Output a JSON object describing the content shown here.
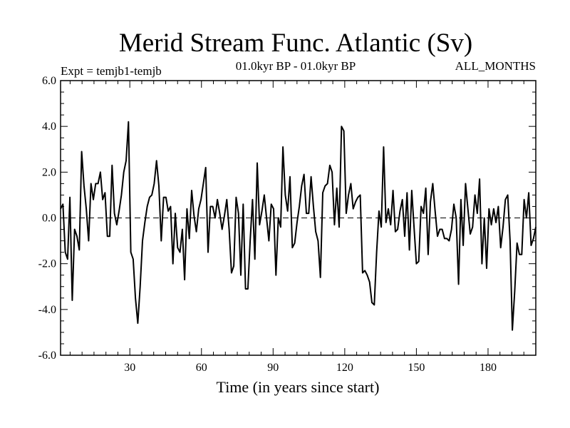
{
  "chart_data": {
    "type": "line",
    "title": "Merid Stream Func. Atlantic (Sv)",
    "subtitle_left": "Expt = temjb1-temjb",
    "subtitle_center": "01.0kyr BP - 01.0kyr BP",
    "subtitle_right": "ALL_MONTHS",
    "xlabel": "Time (in years since start)",
    "ylabel": "",
    "xlim": [
      1,
      200
    ],
    "ylim": [
      -6,
      6
    ],
    "xticks": [
      30,
      60,
      90,
      120,
      150,
      180
    ],
    "yticks": [
      6,
      4,
      2,
      0,
      -2,
      -4,
      -6
    ],
    "ytick_labels": [
      "6.0",
      "4.0",
      "2.0",
      "0.0",
      "-2.0",
      "-4.0",
      "-6.0"
    ],
    "reference_line": 0,
    "series": [
      {
        "name": "Merid Stream Func. Atlantic",
        "values": [
          0.4,
          0.6,
          -1.5,
          -1.8,
          0.9,
          -3.6,
          -0.5,
          -0.8,
          -1.4,
          2.9,
          1.4,
          0.4,
          -1.0,
          1.5,
          0.8,
          1.5,
          1.5,
          2.0,
          0.8,
          1.1,
          -0.8,
          -0.8,
          2.3,
          0.2,
          -0.3,
          0.3,
          1.0,
          2.0,
          2.5,
          4.2,
          -1.5,
          -1.8,
          -3.5,
          -4.6,
          -3.0,
          -1.0,
          -0.2,
          0.5,
          0.9,
          1.0,
          1.5,
          2.5,
          1.4,
          -1.0,
          0.9,
          0.9,
          0.3,
          0.5,
          -2.0,
          0.2,
          -1.3,
          -1.5,
          -0.5,
          -2.7,
          0.4,
          -0.9,
          1.2,
          0.1,
          -0.6,
          0.4,
          0.8,
          1.5,
          2.2,
          -1.5,
          0.5,
          0.5,
          0.0,
          0.8,
          0.2,
          -0.5,
          0.1,
          0.8,
          -0.5,
          -2.4,
          -2.1,
          0.9,
          0.2,
          -2.5,
          0.6,
          -3.1,
          -3.1,
          -1.0,
          0.8,
          -1.8,
          2.4,
          -0.3,
          0.3,
          1.0,
          0.0,
          -1.0,
          0.6,
          0.4,
          -2.5,
          0.0,
          -0.4,
          3.1,
          1.0,
          0.3,
          1.8,
          -1.3,
          -1.1,
          -0.2,
          0.5,
          1.4,
          1.9,
          0.2,
          0.2,
          1.8,
          0.5,
          -0.6,
          -1.0,
          -2.6,
          1.1,
          1.4,
          1.5,
          2.3,
          2.0,
          -0.3,
          1.3,
          -0.4,
          4.0,
          3.8,
          0.2,
          1.0,
          1.5,
          0.4,
          0.7,
          0.9,
          1.0,
          -2.4,
          -2.3,
          -2.5,
          -2.8,
          -3.7,
          -3.8,
          -1.5,
          0.3,
          -0.4,
          3.1,
          -0.2,
          0.4,
          -0.3,
          1.2,
          -0.6,
          -0.5,
          0.3,
          0.8,
          -0.8,
          1.1,
          -1.4,
          1.2,
          -0.4,
          -2.0,
          -1.9,
          0.5,
          0.2,
          1.3,
          -1.6,
          0.7,
          1.5,
          0.3,
          -0.8,
          -0.5,
          -0.5,
          -0.9,
          -0.9,
          -1.0,
          -0.5,
          0.6,
          0.0,
          -2.9,
          0.8,
          -1.2,
          1.5,
          0.4,
          -0.7,
          -0.4,
          1.0,
          0.2,
          1.7,
          -2.0,
          0.0,
          -2.2,
          0.4,
          -0.3,
          0.4,
          -0.2,
          0.5,
          -1.3,
          -0.4,
          0.8,
          1.0,
          -1.0,
          -4.9,
          -3.2,
          -1.1,
          -1.6,
          -1.6,
          0.8,
          0.0,
          1.1,
          -1.2,
          -0.9,
          -0.4
        ]
      }
    ]
  }
}
